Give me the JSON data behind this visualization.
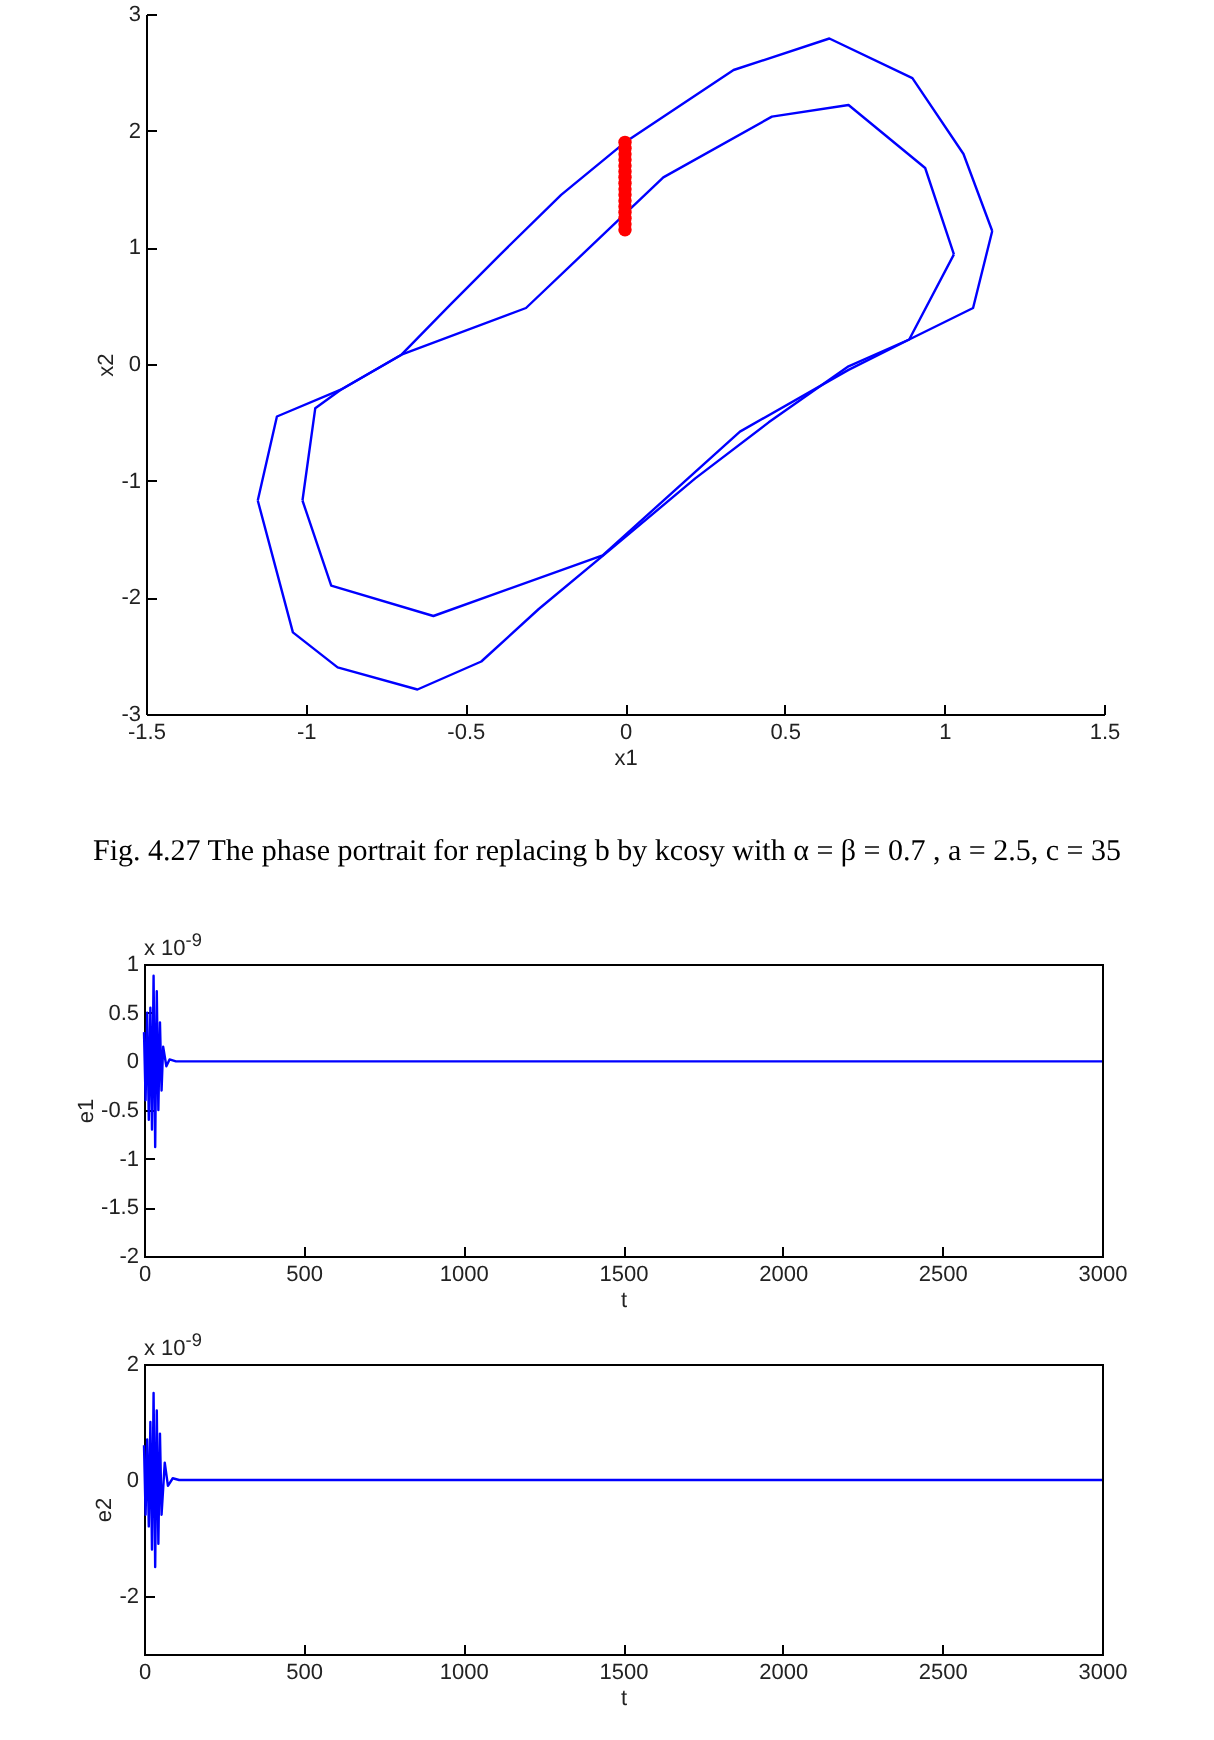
{
  "chart_data": [
    {
      "type": "line",
      "xlabel": "x1",
      "ylabel": "x2",
      "xlim": [
        -1.5,
        1.5
      ],
      "ylim": [
        -3,
        3
      ],
      "xticks": [
        -1.5,
        -1,
        -0.5,
        0,
        0.5,
        1,
        1.5
      ],
      "yticks": [
        -3,
        -2,
        -1,
        0,
        1,
        2,
        3
      ],
      "annotations": [
        "Fig. 4.27 The phase portrait for replacing b by kcosy with α = β = 0.7 , a = 2.5, c = 35"
      ],
      "series": [
        {
          "color": "#0000ff",
          "x": [
            -1.15,
            -1.09,
            -0.89,
            -0.7,
            -0.55,
            -0.39,
            -0.2,
            0,
            0.34,
            0.64,
            0.9,
            1.06,
            1.15
          ],
          "values": [
            -1.17,
            -0.45,
            -0.22,
            0.08,
            0.5,
            0.94,
            1.45,
            1.9,
            2.52,
            2.79,
            2.45,
            1.8,
            1.14
          ]
        },
        {
          "color": "#0000ff",
          "x": [
            -1.15,
            -1.04,
            -0.9,
            -0.65,
            -0.45,
            -0.27,
            -0.05,
            0.22,
            0.45,
            0.7,
            0.89,
            1.09,
            1.15
          ],
          "values": [
            -1.17,
            -2.3,
            -2.6,
            -2.79,
            -2.55,
            -2.1,
            -1.6,
            -0.98,
            -0.5,
            -0.02,
            0.21,
            0.48,
            1.14
          ]
        },
        {
          "color": "#0000ff",
          "x": [
            -1.01,
            -0.97,
            -0.89,
            -0.7,
            -0.31,
            0.12,
            0.46,
            0.7,
            0.94,
            1.03
          ],
          "values": [
            -1.17,
            -0.38,
            -0.22,
            0.08,
            0.48,
            1.6,
            2.12,
            2.22,
            1.68,
            0.94
          ]
        },
        {
          "color": "#0000ff",
          "x": [
            -1.01,
            -0.92,
            -0.6,
            -0.07,
            0.36,
            0.7,
            0.89,
            1.03
          ],
          "values": [
            -1.17,
            -1.9,
            -2.16,
            -1.64,
            -0.58,
            -0.05,
            0.21,
            0.94
          ]
        },
        {
          "type": "scatter",
          "color": "#ff0000",
          "marker": "circle",
          "x": [
            0,
            0,
            0,
            0,
            0,
            0,
            0,
            0,
            0,
            0,
            0,
            0,
            0,
            0,
            0,
            0
          ],
          "values": [
            1.15,
            1.2,
            1.25,
            1.3,
            1.35,
            1.4,
            1.45,
            1.5,
            1.55,
            1.6,
            1.65,
            1.7,
            1.75,
            1.8,
            1.85,
            1.9
          ]
        }
      ]
    },
    {
      "type": "line",
      "xlabel": "t",
      "ylabel": "e1",
      "xlim": [
        0,
        3000
      ],
      "ylim": [
        -2,
        1
      ],
      "xticks": [
        0,
        500,
        1000,
        1500,
        2000,
        2500,
        3000
      ],
      "yticks": [
        -2,
        -1.5,
        -1,
        -0.5,
        0,
        0.5,
        1
      ],
      "annotations": [
        "x 10$^{-9}$"
      ],
      "series": [
        {
          "color": "#0000ff",
          "x": [
            0,
            5,
            10,
            15,
            20,
            25,
            30,
            35,
            40,
            45,
            50,
            55,
            60,
            70,
            80,
            100,
            3000
          ],
          "values": [
            0.3,
            -0.4,
            0.5,
            -0.6,
            0.55,
            -0.7,
            0.88,
            -0.88,
            0.72,
            -0.5,
            0.4,
            -0.3,
            0.15,
            -0.05,
            0.02,
            0,
            0
          ]
        }
      ]
    },
    {
      "type": "line",
      "xlabel": "t",
      "ylabel": "e2",
      "xlim": [
        0,
        3000
      ],
      "ylim": [
        -3,
        2
      ],
      "xticks": [
        0,
        500,
        1000,
        1500,
        2000,
        2500,
        3000
      ],
      "yticks": [
        -2,
        0,
        2
      ],
      "annotations": [
        "x 10$^{-9}$"
      ],
      "series": [
        {
          "color": "#0000ff",
          "x": [
            0,
            5,
            10,
            15,
            20,
            25,
            30,
            35,
            40,
            45,
            50,
            55,
            65,
            75,
            90,
            110,
            3000
          ],
          "values": [
            0.6,
            -0.6,
            0.7,
            -0.8,
            1,
            -1.2,
            1.5,
            -1.5,
            1.2,
            -1.1,
            0.8,
            -0.6,
            0.3,
            -0.1,
            0.03,
            0,
            0
          ]
        }
      ]
    }
  ]
}
